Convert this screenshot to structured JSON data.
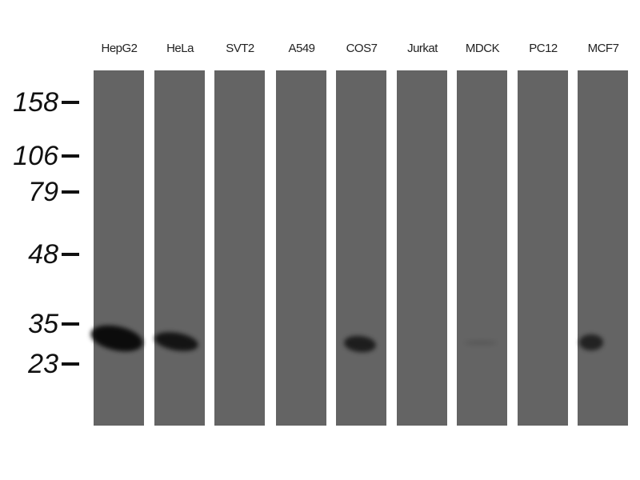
{
  "lanes": [
    {
      "label": "HepG2",
      "band_intensity": 1.0
    },
    {
      "label": "HeLa",
      "band_intensity": 0.9
    },
    {
      "label": "SVT2",
      "band_intensity": 0
    },
    {
      "label": "A549",
      "band_intensity": 0
    },
    {
      "label": "COS7",
      "band_intensity": 0.8
    },
    {
      "label": "Jurkat",
      "band_intensity": 0
    },
    {
      "label": "MDCK",
      "band_intensity": 0.15
    },
    {
      "label": "PC12",
      "band_intensity": 0
    },
    {
      "label": "MCF7",
      "band_intensity": 0.75
    }
  ],
  "markers": [
    "158",
    "106",
    "79",
    "48",
    "35",
    "23"
  ],
  "colors": {
    "lane": "#646464",
    "band": "#0c0c0c",
    "background": "#ffffff"
  }
}
